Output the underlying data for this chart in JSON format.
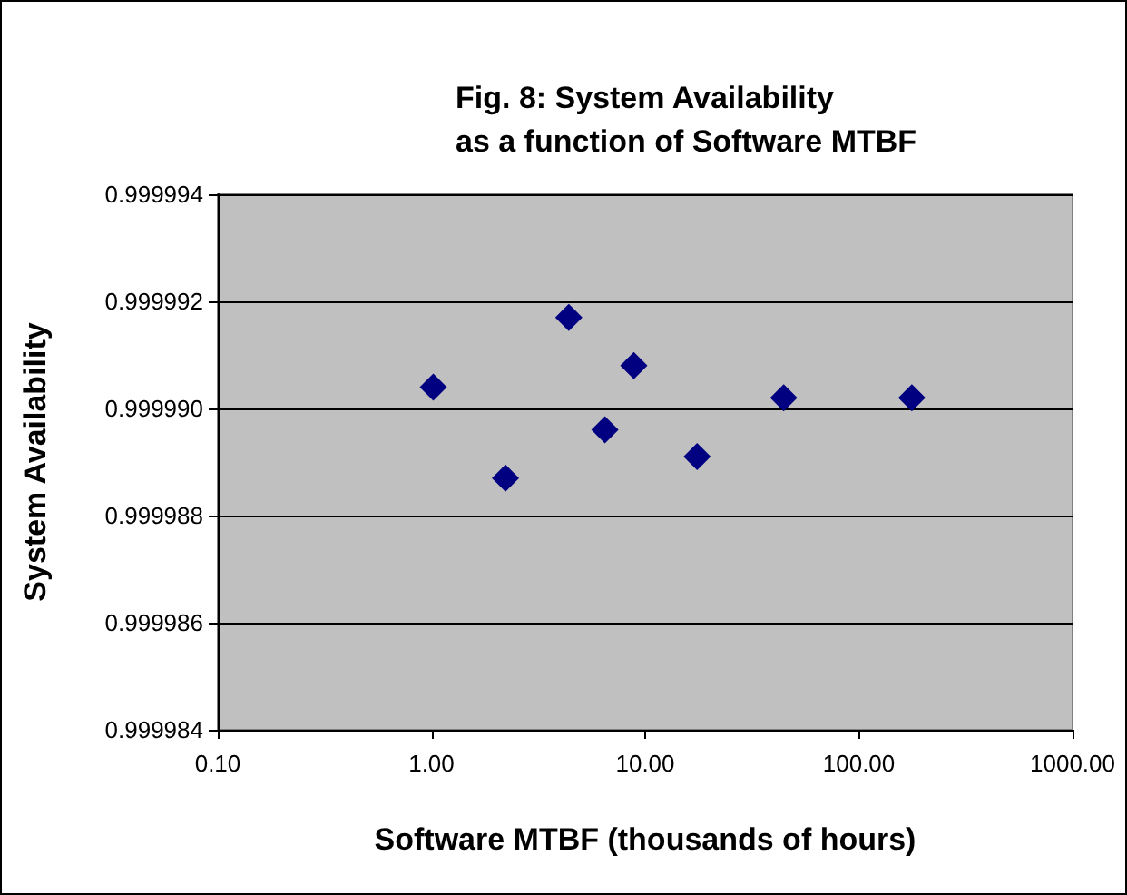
{
  "chart_data": {
    "type": "scatter",
    "title": "Fig. 8: System Availability\nas a function of Software MTBF",
    "xlabel": "Software MTBF (thousands of hours)",
    "ylabel": "System Availability",
    "x": [
      1.02,
      2.22,
      4.39,
      6.48,
      8.85,
      17.5,
      44.5,
      177
    ],
    "series": [
      {
        "color": "#000080",
        "values": [
          0.9999904,
          0.9999887,
          0.9999917,
          0.9999896,
          0.9999908,
          0.9999891,
          0.9999902,
          0.9999902
        ]
      }
    ],
    "xlim": [
      0.1,
      1000
    ],
    "xticks": [
      {
        "value": 0.1,
        "label": "0.10"
      },
      {
        "value": 1,
        "label": "1.00"
      },
      {
        "value": 10,
        "label": "10.00"
      },
      {
        "value": 100,
        "label": "100.00"
      },
      {
        "value": 1000,
        "label": "1000.00"
      }
    ],
    "ylim": [
      0.999984,
      0.999994
    ],
    "yticks": [
      {
        "value": 0.999984,
        "label": "0.999984"
      },
      {
        "value": 0.999986,
        "label": "0.999986"
      },
      {
        "value": 0.999988,
        "label": "0.999988"
      },
      {
        "value": 0.99999,
        "label": "0.999990"
      },
      {
        "value": 0.999992,
        "label": "0.999992"
      },
      {
        "value": 0.999994,
        "label": "0.999994"
      }
    ],
    "log": "x",
    "grid": "y",
    "marker": "diamond"
  }
}
